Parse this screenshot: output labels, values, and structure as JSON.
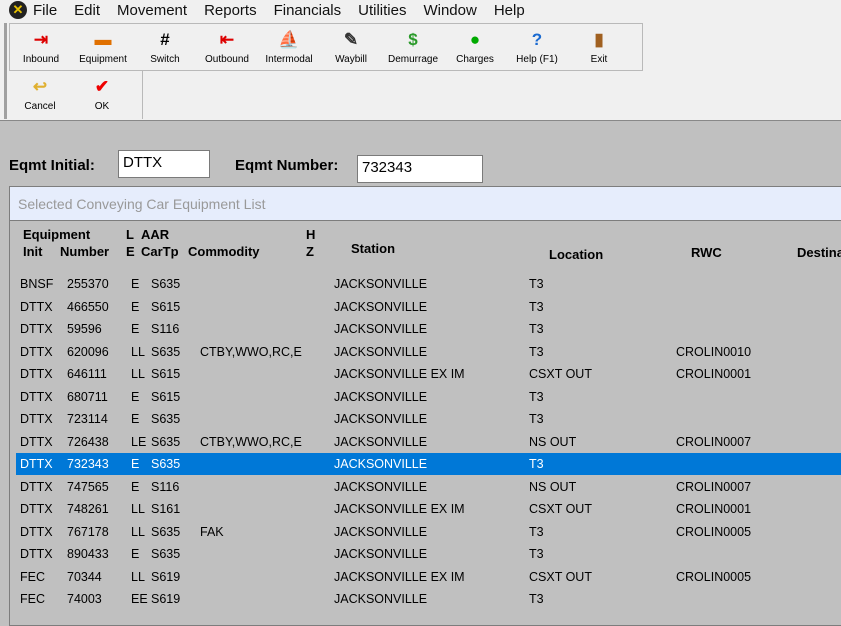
{
  "menu": [
    "File",
    "Edit",
    "Movement",
    "Reports",
    "Financials",
    "Utilities",
    "Window",
    "Help"
  ],
  "toolbar": [
    {
      "label": "Inbound",
      "icon": "inbound-icon",
      "glyph": "⇥",
      "color": "#d00"
    },
    {
      "label": "Equipment",
      "icon": "equipment-car-icon",
      "glyph": "▬",
      "color": "#e07000"
    },
    {
      "label": "Switch",
      "icon": "track-icon",
      "glyph": "#",
      "color": "#000"
    },
    {
      "label": "Outbound",
      "icon": "outbound-icon",
      "glyph": "⇤",
      "color": "#d00"
    },
    {
      "label": "Intermodal",
      "icon": "ship-icon",
      "glyph": "⛵",
      "color": "#066"
    },
    {
      "label": "Waybill",
      "icon": "waybill-icon",
      "glyph": "✎",
      "color": "#333"
    },
    {
      "label": "Demurrage",
      "icon": "dollar-icon",
      "glyph": "$",
      "color": "#2a9a2a"
    },
    {
      "label": "Charges",
      "icon": "money-bag-icon",
      "glyph": "●",
      "color": "#0a0"
    },
    {
      "label": "Help (F1)",
      "icon": "help-icon",
      "glyph": "?",
      "color": "#1a6ad0"
    },
    {
      "label": "Exit",
      "icon": "exit-door-icon",
      "glyph": "▮",
      "color": "#a06020"
    }
  ],
  "toolbar2": [
    {
      "label": "Cancel",
      "icon": "cancel-arrow-icon",
      "glyph": "↩",
      "color": "#e0b030"
    },
    {
      "label": "OK",
      "icon": "checkmark-icon",
      "glyph": "✔",
      "color": "#e00"
    }
  ],
  "form": {
    "initial_label": "Eqmt Initial:",
    "initial_value": "DTTX",
    "number_label": "Eqmt Number:",
    "number_value": "732343"
  },
  "list": {
    "title": "Selected Conveying Car Equipment List",
    "headers": {
      "equipment": "Equipment",
      "init": "Init",
      "number": "Number",
      "l": "L",
      "e": "E",
      "aar": "AAR",
      "cartp": "CarTp",
      "commodity": "Commodity",
      "h": "H",
      "z": "Z",
      "station": "Station",
      "location": "Location",
      "rwc": "RWC",
      "destination": "Destina"
    },
    "selected_index": 8,
    "rows": [
      [
        "BNSF",
        "255370",
        "E",
        "S635",
        "",
        "JACKSONVILLE",
        "T3",
        ""
      ],
      [
        "DTTX",
        "466550",
        "E",
        "S615",
        "",
        "JACKSONVILLE",
        "T3",
        ""
      ],
      [
        "DTTX",
        "59596",
        "E",
        "S116",
        "",
        "JACKSONVILLE",
        "T3",
        ""
      ],
      [
        "DTTX",
        "620096",
        "LL",
        "S635",
        "CTBY,WWO,RC,E",
        "JACKSONVILLE",
        "T3",
        "CROLIN0010"
      ],
      [
        "DTTX",
        "646111",
        "LL",
        "S615",
        "",
        "JACKSONVILLE EX IM",
        "CSXT OUT",
        "CROLIN0001"
      ],
      [
        "DTTX",
        "680711",
        "E",
        "S615",
        "",
        "JACKSONVILLE",
        "T3",
        ""
      ],
      [
        "DTTX",
        "723114",
        "E",
        "S635",
        "",
        "JACKSONVILLE",
        "T3",
        ""
      ],
      [
        "DTTX",
        "726438",
        "LE",
        "S635",
        "CTBY,WWO,RC,E",
        "JACKSONVILLE",
        "NS OUT",
        "CROLIN0007"
      ],
      [
        "DTTX",
        "732343",
        "E",
        "S635",
        "",
        "JACKSONVILLE",
        "T3",
        ""
      ],
      [
        "DTTX",
        "747565",
        "E",
        "S116",
        "",
        "JACKSONVILLE",
        "NS OUT",
        "CROLIN0007"
      ],
      [
        "DTTX",
        "748261",
        "LL",
        "S161",
        "",
        "JACKSONVILLE EX IM",
        "CSXT OUT",
        "CROLIN0001"
      ],
      [
        "DTTX",
        "767178",
        "LL",
        "S635",
        "FAK",
        "JACKSONVILLE",
        "T3",
        "CROLIN0005"
      ],
      [
        "DTTX",
        "890433",
        "E",
        "S635",
        "",
        "JACKSONVILLE",
        "T3",
        ""
      ],
      [
        "FEC",
        "70344",
        "LL",
        "S619",
        "",
        "JACKSONVILLE EX IM",
        "CSXT OUT",
        "CROLIN0005"
      ],
      [
        "FEC",
        "74003",
        "EE",
        "S619",
        "",
        "JACKSONVILLE",
        "T3",
        ""
      ]
    ]
  }
}
